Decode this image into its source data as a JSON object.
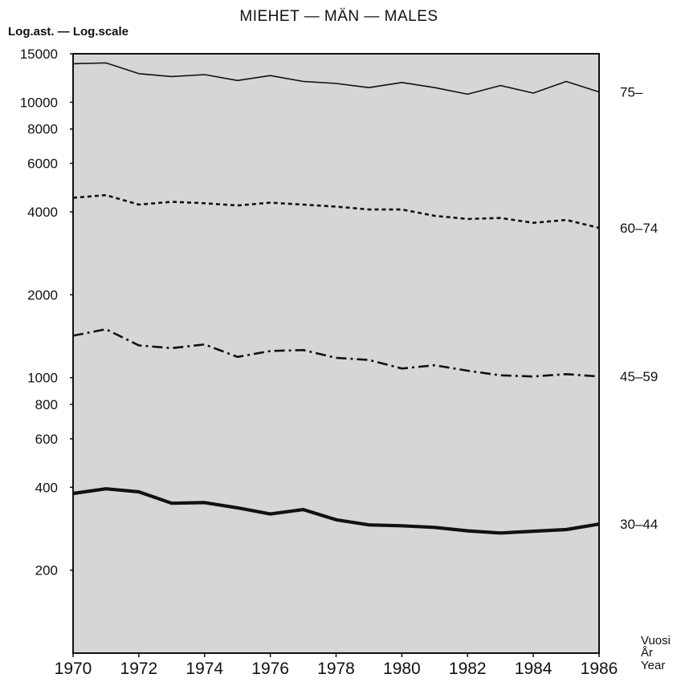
{
  "chart_data": {
    "type": "line",
    "title": "MIEHET — MÄN — MALES",
    "ylabel": "Log.ast. — Log.scale",
    "xlabel_lines": [
      "Vuosi",
      "År",
      "Year"
    ],
    "y_scale": "log",
    "ylim": [
      100,
      15000
    ],
    "xlim": [
      1970,
      1986
    ],
    "yticks": [
      15000,
      10000,
      8000,
      6000,
      4000,
      2000,
      1000,
      800,
      600,
      400,
      200
    ],
    "xticks": [
      1970,
      1972,
      1974,
      1976,
      1978,
      1980,
      1982,
      1984,
      1986
    ],
    "plot_background": "#d6d6d6",
    "x": [
      1970,
      1971,
      1972,
      1973,
      1974,
      1975,
      1976,
      1977,
      1978,
      1979,
      1980,
      1981,
      1982,
      1983,
      1984,
      1985,
      1986
    ],
    "series": [
      {
        "name": "75–",
        "style": "solid-thin",
        "values": [
          13800,
          13900,
          12700,
          12400,
          12600,
          12000,
          12500,
          11900,
          11700,
          11300,
          11800,
          11300,
          10700,
          11500,
          10800,
          11900,
          10900
        ]
      },
      {
        "name": "60–74",
        "style": "dashed",
        "values": [
          4500,
          4600,
          4250,
          4350,
          4300,
          4220,
          4320,
          4250,
          4180,
          4080,
          4080,
          3870,
          3770,
          3800,
          3650,
          3740,
          3500
        ]
      },
      {
        "name": "45–59",
        "style": "dash-dot",
        "values": [
          1420,
          1500,
          1310,
          1280,
          1320,
          1190,
          1250,
          1260,
          1180,
          1160,
          1080,
          1110,
          1060,
          1020,
          1010,
          1030,
          1010
        ]
      },
      {
        "name": "30–44",
        "style": "solid-thick",
        "values": [
          380,
          395,
          385,
          350,
          352,
          337,
          320,
          332,
          305,
          292,
          290,
          286,
          278,
          273,
          277,
          281,
          294
        ]
      }
    ]
  }
}
